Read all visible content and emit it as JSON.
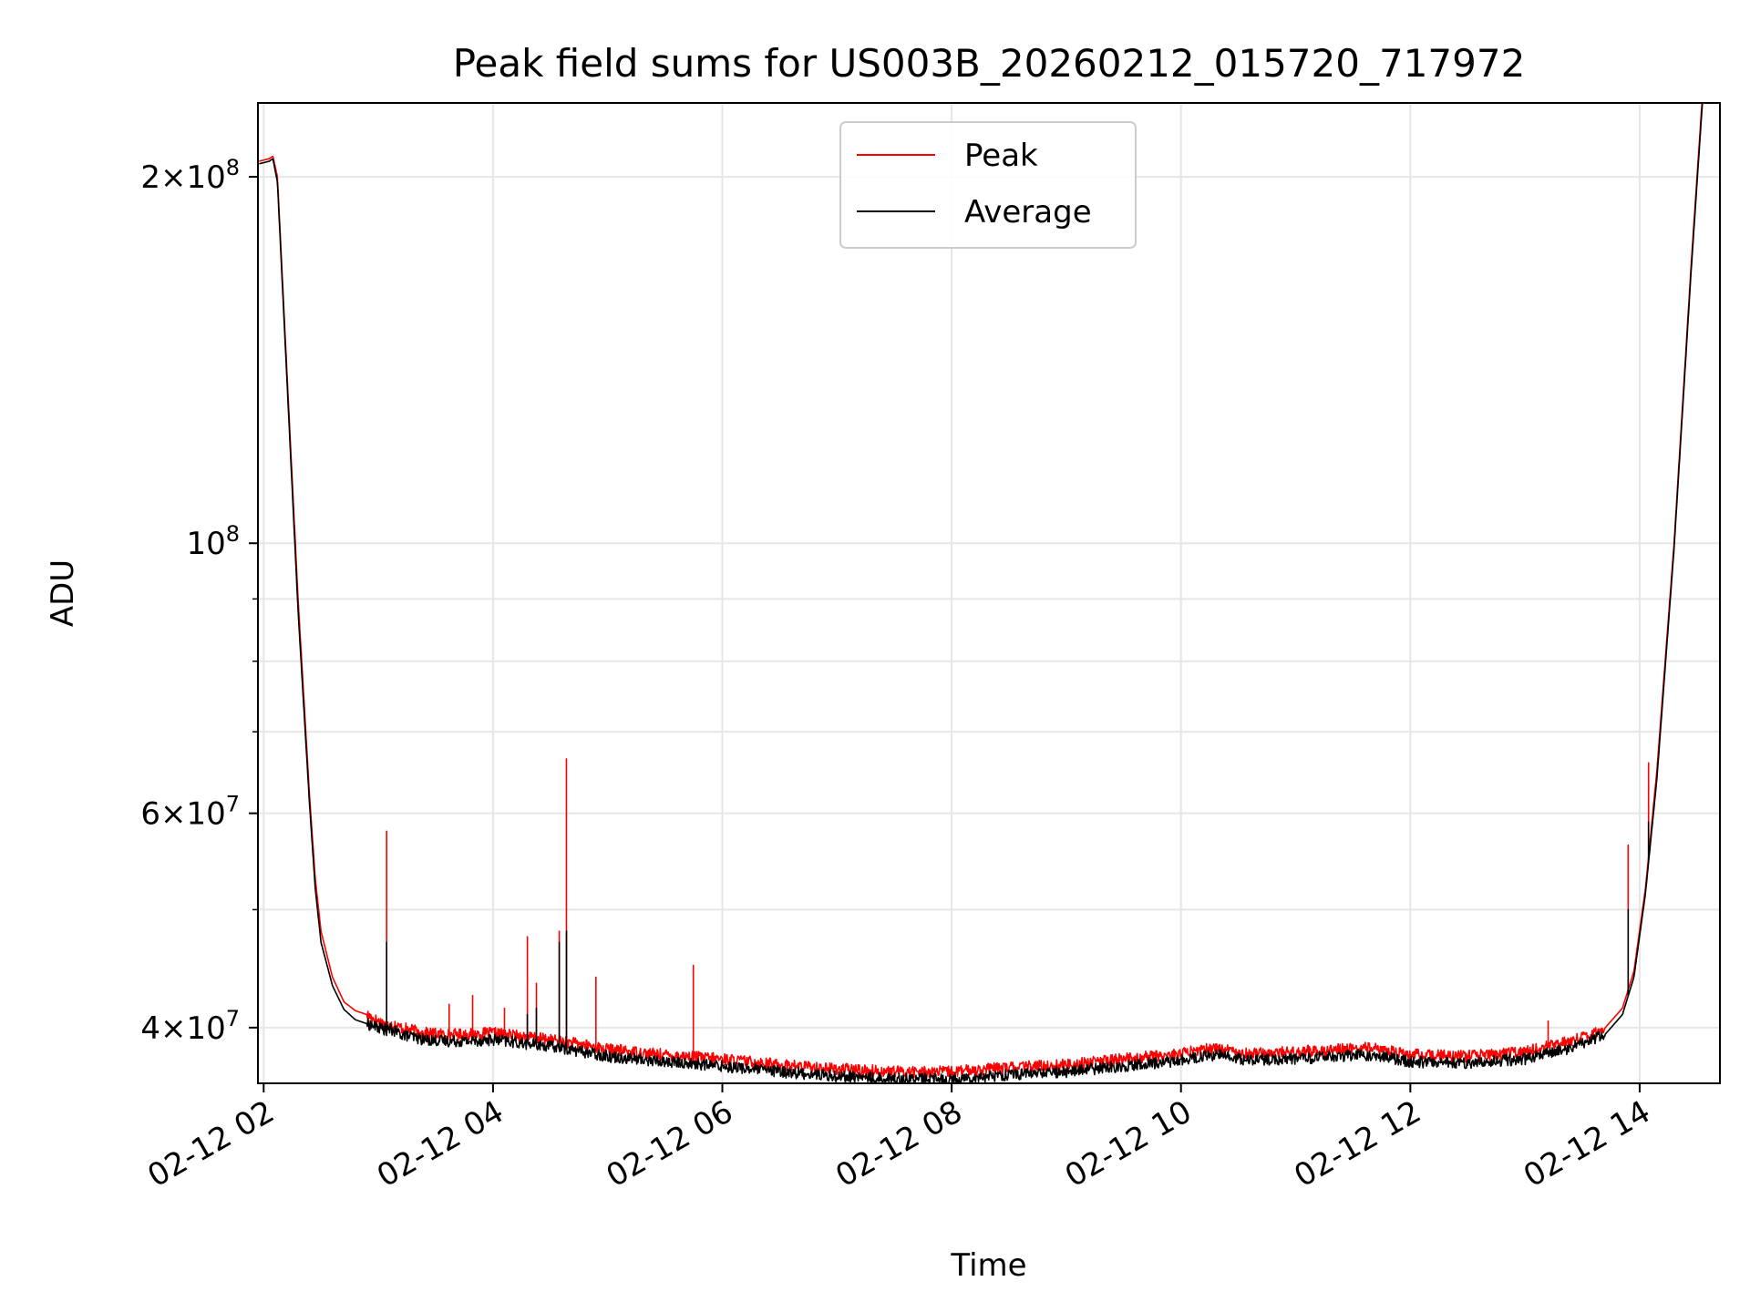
{
  "chart_data": {
    "type": "line",
    "title": "Peak field sums for US003B_20260212_015720_717972",
    "xlabel": "Time",
    "ylabel": "ADU",
    "yscale": "log",
    "xlim": [
      1.95,
      14.7
    ],
    "ylim": [
      36000000,
      230000000
    ],
    "grid": true,
    "legend_position": "top-center",
    "x_unit": "hours since 2026-02-12 00:00",
    "x_ticks": [
      {
        "value": 2,
        "label": "02-12 02"
      },
      {
        "value": 4,
        "label": "02-12 04"
      },
      {
        "value": 6,
        "label": "02-12 06"
      },
      {
        "value": 8,
        "label": "02-12 08"
      },
      {
        "value": 10,
        "label": "02-12 10"
      },
      {
        "value": 12,
        "label": "02-12 12"
      },
      {
        "value": 14,
        "label": "02-12 14"
      }
    ],
    "y_major_ticks": [
      {
        "value": 40000000,
        "mantissa": "4",
        "base": "10",
        "exp": "7"
      },
      {
        "value": 60000000,
        "mantissa": "6",
        "base": "10",
        "exp": "7"
      },
      {
        "value": 100000000,
        "mantissa": "",
        "base": "10",
        "exp": "8"
      },
      {
        "value": 200000000,
        "mantissa": "2",
        "base": "10",
        "exp": "8"
      }
    ],
    "y_minor_ticks": [
      50000000,
      70000000,
      80000000,
      90000000
    ],
    "series": [
      {
        "name": "Peak",
        "color": "#ff0000",
        "x": [
          1.96,
          2.05,
          2.08,
          2.12,
          2.2,
          2.3,
          2.4,
          2.45,
          2.5,
          2.6,
          2.7,
          2.8,
          2.9,
          3.0,
          3.08,
          3.1,
          3.2,
          3.4,
          3.6,
          3.8,
          4.0,
          4.2,
          4.4,
          4.6,
          4.8,
          5.0,
          5.5,
          6.0,
          6.5,
          7.0,
          7.5,
          8.0,
          8.5,
          9.0,
          9.5,
          10.0,
          10.3,
          10.6,
          11.0,
          11.6,
          11.8,
          12.0,
          12.5,
          13.0,
          13.4,
          13.7,
          13.85,
          13.95,
          14.05,
          14.15,
          14.3,
          14.45,
          14.55
        ],
        "y": [
          206000000,
          207000000,
          208000000,
          200000000,
          140000000,
          90000000,
          62000000,
          53000000,
          48000000,
          44000000,
          42000000,
          41300000,
          41000000,
          40500000,
          40200000,
          40300000,
          40000000,
          39600000,
          39500000,
          39500000,
          39600000,
          39400000,
          39200000,
          39000000,
          38700000,
          38400000,
          38000000,
          37700000,
          37300000,
          37000000,
          36800000,
          36800000,
          37100000,
          37300000,
          37700000,
          38100000,
          38500000,
          38100000,
          38200000,
          38500000,
          38300000,
          38000000,
          37900000,
          38200000,
          39000000,
          40000000,
          41500000,
          44500000,
          52000000,
          65000000,
          100000000,
          170000000,
          235000000
        ],
        "spikes": [
          {
            "x": 3.07,
            "y": 58000000
          },
          {
            "x": 3.62,
            "y": 41800000
          },
          {
            "x": 3.82,
            "y": 42500000
          },
          {
            "x": 4.1,
            "y": 41500000
          },
          {
            "x": 4.3,
            "y": 47500000
          },
          {
            "x": 4.38,
            "y": 43500000
          },
          {
            "x": 4.58,
            "y": 48000000
          },
          {
            "x": 4.64,
            "y": 66500000
          },
          {
            "x": 4.9,
            "y": 44000000
          },
          {
            "x": 5.75,
            "y": 45000000
          },
          {
            "x": 13.2,
            "y": 40500000
          },
          {
            "x": 13.9,
            "y": 56500000
          },
          {
            "x": 14.08,
            "y": 66000000
          }
        ]
      },
      {
        "name": "Average",
        "color": "#000000",
        "x": [
          1.96,
          2.05,
          2.08,
          2.12,
          2.2,
          2.3,
          2.4,
          2.45,
          2.5,
          2.6,
          2.7,
          2.8,
          2.9,
          3.0,
          3.08,
          3.1,
          3.2,
          3.4,
          3.6,
          3.8,
          4.0,
          4.2,
          4.4,
          4.6,
          4.8,
          5.0,
          5.5,
          6.0,
          6.5,
          7.0,
          7.5,
          8.0,
          8.5,
          9.0,
          9.5,
          10.0,
          10.3,
          10.6,
          11.0,
          11.6,
          11.8,
          12.0,
          12.5,
          13.0,
          13.4,
          13.7,
          13.85,
          13.95,
          14.05,
          14.15,
          14.3,
          14.45,
          14.55
        ],
        "y": [
          205000000,
          206000000,
          207000000,
          198000000,
          138000000,
          88000000,
          61000000,
          52000000,
          47000000,
          43300000,
          41400000,
          40600000,
          40300000,
          40000000,
          39800000,
          39900000,
          39500000,
          39100000,
          39000000,
          39000000,
          39100000,
          38900000,
          38700000,
          38500000,
          38200000,
          37900000,
          37500000,
          37200000,
          36800000,
          36500000,
          36300000,
          36300000,
          36600000,
          36800000,
          37200000,
          37600000,
          38000000,
          37600000,
          37700000,
          38000000,
          37800000,
          37500000,
          37400000,
          37700000,
          38500000,
          39500000,
          41000000,
          44000000,
          51500000,
          64000000,
          99000000,
          168000000,
          232000000
        ],
        "spikes": [
          {
            "x": 3.07,
            "y": 47000000
          },
          {
            "x": 4.3,
            "y": 41000000
          },
          {
            "x": 4.38,
            "y": 41500000
          },
          {
            "x": 4.58,
            "y": 47000000
          },
          {
            "x": 4.64,
            "y": 48000000
          },
          {
            "x": 13.9,
            "y": 50000000
          },
          {
            "x": 14.08,
            "y": 59000000
          }
        ]
      }
    ]
  }
}
